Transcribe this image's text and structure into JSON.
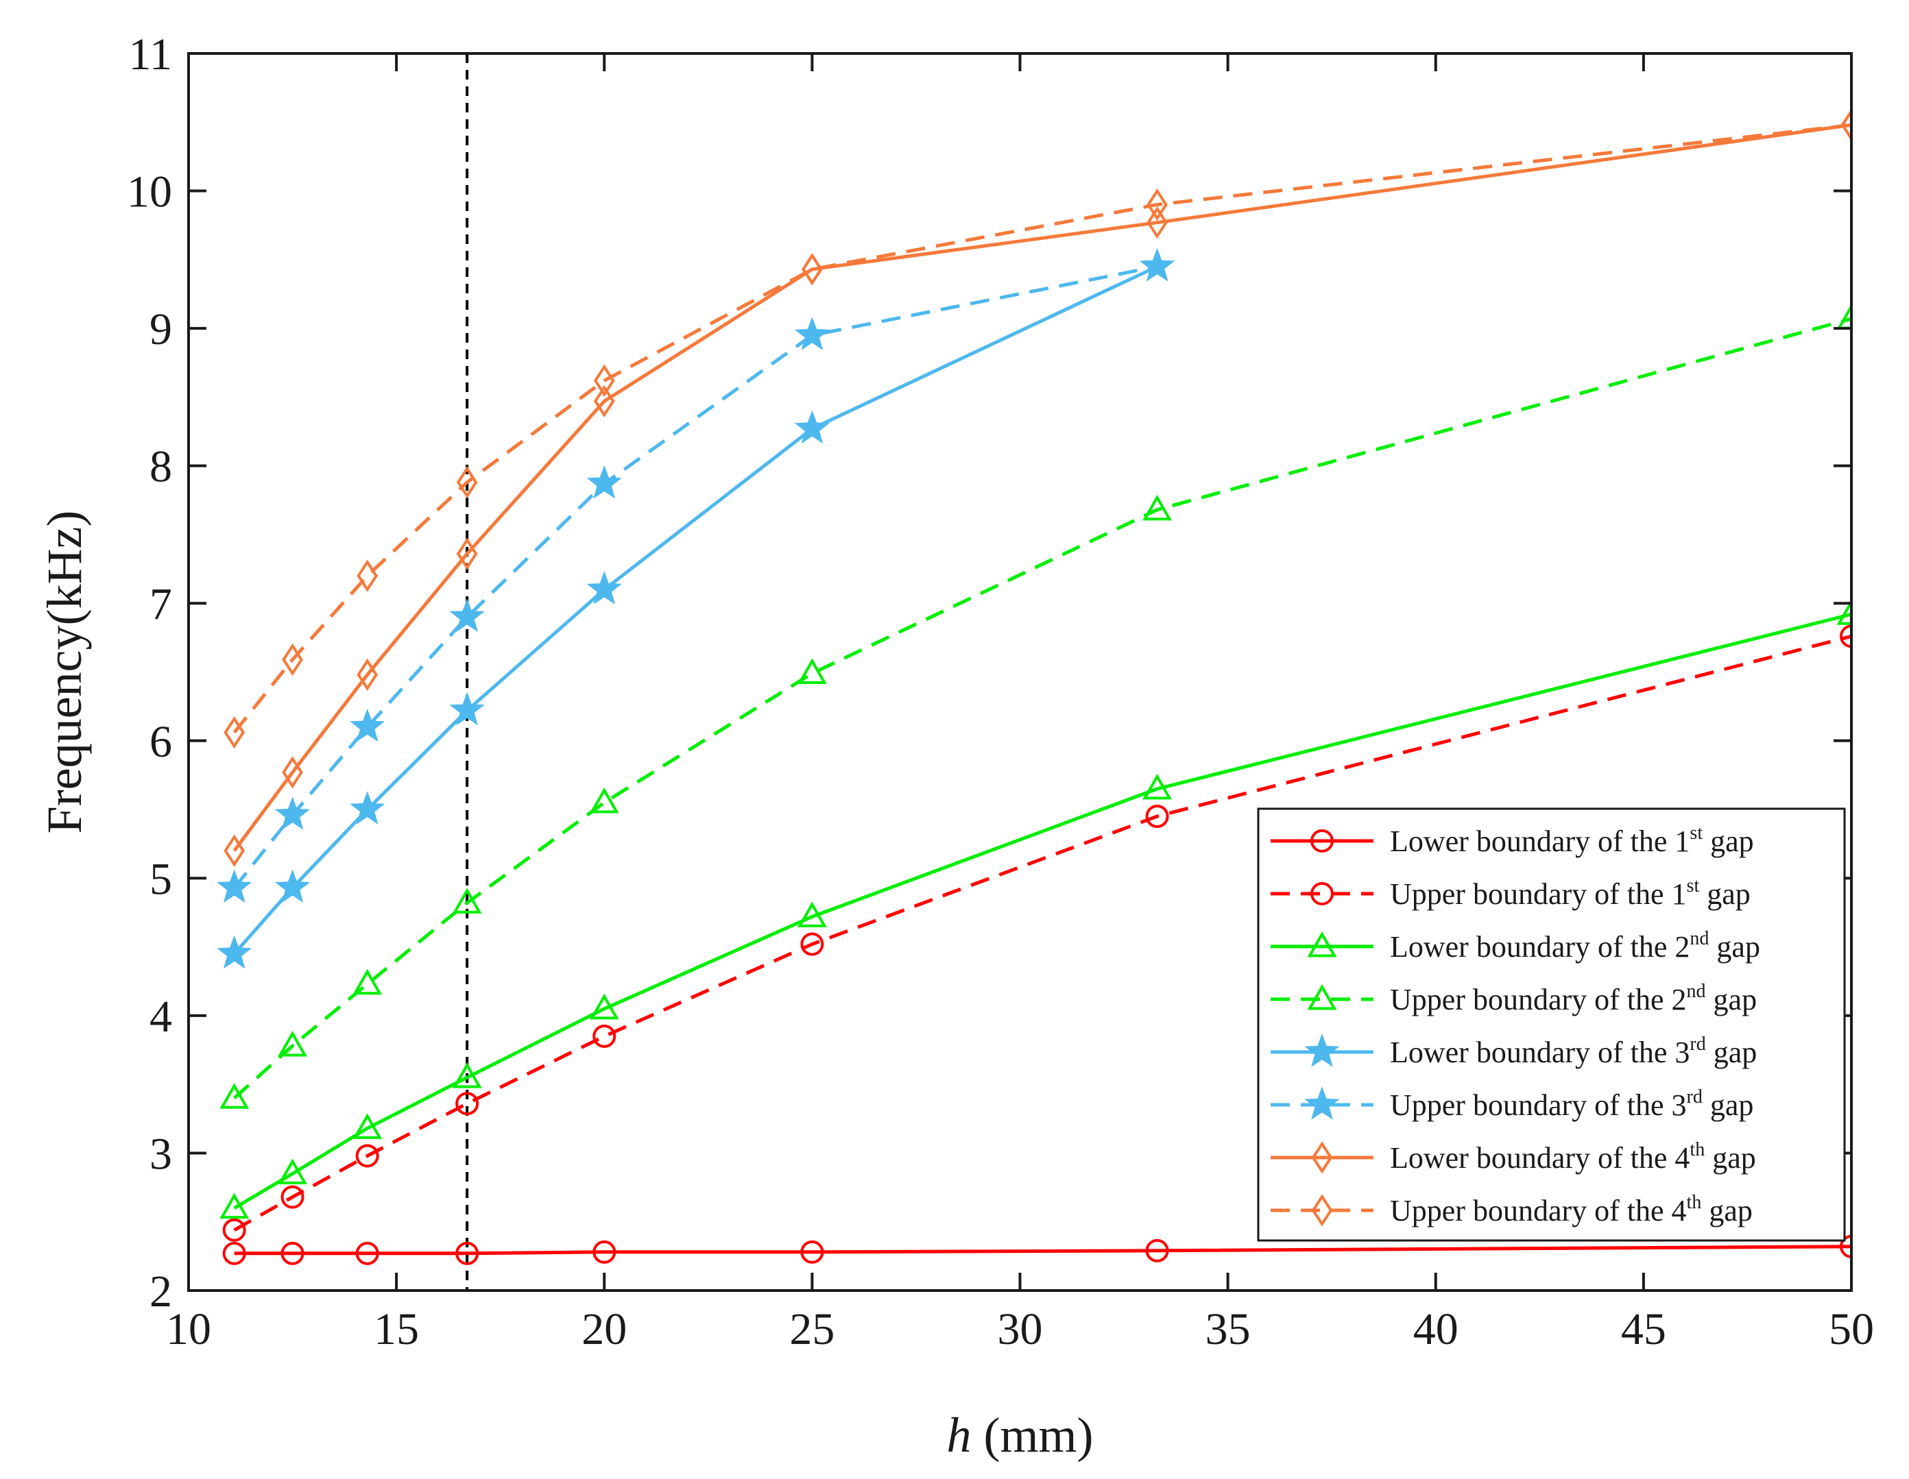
{
  "chart_data": {
    "type": "line",
    "title": "",
    "xlabel_var": "h",
    "xlabel_unit": " (mm)",
    "ylabel": "Frequency(kHz)",
    "xlim": [
      10,
      50
    ],
    "ylim": [
      2,
      11
    ],
    "xticks": [
      10,
      15,
      20,
      25,
      30,
      35,
      40,
      45,
      50
    ],
    "yticks": [
      2,
      3,
      4,
      5,
      6,
      7,
      8,
      9,
      10,
      11
    ],
    "grid": false,
    "legend_position": "lower-right",
    "reference_line": {
      "x": 16.7,
      "style": "dashed",
      "color": "#000000"
    },
    "series": [
      {
        "name": "Lower boundary of the 1st gap",
        "legend_text": {
          "pre": "Lower boundary of the 1",
          "sup": "st",
          "post": " gap"
        },
        "color": "#ff0000",
        "dash": "solid",
        "marker": "circle",
        "x": [
          11.1,
          12.5,
          14.3,
          16.7,
          20,
          25,
          33.3,
          50
        ],
        "y": [
          2.27,
          2.27,
          2.27,
          2.27,
          2.28,
          2.28,
          2.29,
          2.32
        ]
      },
      {
        "name": "Upper boundary of the 1st gap",
        "legend_text": {
          "pre": "Upper boundary of the 1",
          "sup": "st",
          "post": " gap"
        },
        "color": "#ff0000",
        "dash": "dashed",
        "marker": "circle",
        "x": [
          11.1,
          12.5,
          14.3,
          16.7,
          20,
          25,
          33.3,
          50
        ],
        "y": [
          2.44,
          2.68,
          2.98,
          3.36,
          3.85,
          4.52,
          5.45,
          6.76
        ]
      },
      {
        "name": "Lower boundary of the 2nd gap",
        "legend_text": {
          "pre": "Lower boundary of the 2",
          "sup": "nd",
          "post": " gap"
        },
        "color": "#00ee00",
        "dash": "solid",
        "marker": "triangle",
        "x": [
          11.1,
          12.5,
          14.3,
          16.7,
          20,
          25,
          33.3,
          50
        ],
        "y": [
          2.6,
          2.85,
          3.18,
          3.55,
          4.05,
          4.72,
          5.65,
          6.92
        ]
      },
      {
        "name": "Upper boundary of the 2nd gap",
        "legend_text": {
          "pre": "Upper boundary of the 2",
          "sup": "nd",
          "post": " gap"
        },
        "color": "#00ee00",
        "dash": "dashed",
        "marker": "triangle",
        "x": [
          11.1,
          12.5,
          14.3,
          16.7,
          20,
          25,
          33.3,
          50
        ],
        "y": [
          3.4,
          3.78,
          4.23,
          4.82,
          5.55,
          6.49,
          7.68,
          9.07
        ]
      },
      {
        "name": "Lower boundary of the 3rd gap",
        "legend_text": {
          "pre": "Lower boundary of the 3",
          "sup": "rd",
          "post": " gap"
        },
        "color": "#4db8ee",
        "dash": "solid",
        "marker": "star",
        "x": [
          11.1,
          12.5,
          14.3,
          16.7,
          20,
          25,
          33.3
        ],
        "y": [
          4.45,
          4.93,
          5.5,
          6.22,
          7.1,
          8.27,
          9.45
        ]
      },
      {
        "name": "Upper boundary of the 3rd gap",
        "legend_text": {
          "pre": "Upper boundary of the 3",
          "sup": "rd",
          "post": " gap"
        },
        "color": "#4db8ee",
        "dash": "dashed",
        "marker": "star",
        "x": [
          11.1,
          12.5,
          14.3,
          16.7,
          20,
          25,
          33.3
        ],
        "y": [
          4.93,
          5.46,
          6.1,
          6.9,
          7.87,
          8.95,
          9.45
        ]
      },
      {
        "name": "Lower boundary of the 4th gap",
        "legend_text": {
          "pre": "Lower boundary of the 4",
          "sup": "th",
          "post": " gap"
        },
        "color": "#f5793a",
        "dash": "solid",
        "marker": "diamond",
        "x": [
          11.1,
          12.5,
          14.3,
          16.7,
          20,
          25,
          33.3,
          50
        ],
        "y": [
          5.2,
          5.77,
          6.48,
          7.36,
          8.47,
          9.43,
          9.77,
          10.48
        ]
      },
      {
        "name": "Upper boundary of the 4th gap",
        "legend_text": {
          "pre": "Upper boundary of the 4",
          "sup": "th",
          "post": " gap"
        },
        "color": "#f5793a",
        "dash": "dashed",
        "marker": "diamond",
        "x": [
          11.1,
          12.5,
          14.3,
          16.7,
          20,
          25,
          33.3,
          50
        ],
        "y": [
          6.06,
          6.59,
          7.2,
          7.88,
          8.62,
          9.43,
          9.9,
          10.48
        ]
      }
    ]
  }
}
